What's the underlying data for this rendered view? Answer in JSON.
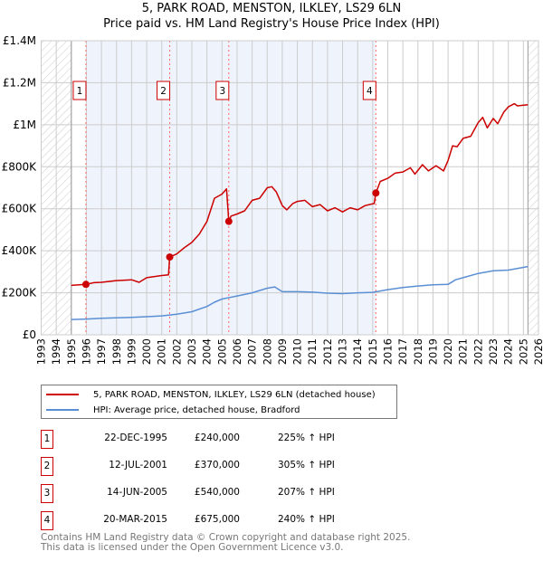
{
  "chart_data": {
    "type": "line",
    "title": "5, PARK ROAD, MENSTON, ILKLEY, LS29 6LN",
    "subtitle": "Price paid vs. HM Land Registry's House Price Index (HPI)",
    "xlim": [
      1993,
      2026
    ],
    "ylim": [
      0,
      1400000
    ],
    "x_ticks": [
      "1993",
      "1994",
      "1995",
      "1996",
      "1997",
      "1998",
      "1999",
      "2000",
      "2001",
      "2002",
      "2003",
      "2004",
      "2005",
      "2006",
      "2007",
      "2008",
      "2009",
      "2010",
      "2011",
      "2012",
      "2013",
      "2014",
      "2015",
      "2016",
      "2017",
      "2018",
      "2019",
      "2020",
      "2021",
      "2022",
      "2023",
      "2024",
      "2025",
      "2026"
    ],
    "y_ticks": [
      {
        "v": 0,
        "label": "£0"
      },
      {
        "v": 200000,
        "label": "£200K"
      },
      {
        "v": 400000,
        "label": "£400K"
      },
      {
        "v": 600000,
        "label": "£600K"
      },
      {
        "v": 800000,
        "label": "£800K"
      },
      {
        "v": 1000000,
        "label": "£1M"
      },
      {
        "v": 1200000,
        "label": "£1.2M"
      },
      {
        "v": 1400000,
        "label": "£1.4M"
      }
    ],
    "grid": true,
    "data_range": [
      1995,
      2025.3
    ],
    "colors": {
      "property": "#cc0000",
      "hpi": "#5b8fd4",
      "shade": "#eef3fc",
      "sale_line": "#ff6666"
    },
    "series": [
      {
        "name": "5, PARK ROAD, MENSTON, ILKLEY, LS29 6LN (detached house)",
        "color": "#cc0000",
        "x": [
          1995.0,
          1995.97,
          1996.5,
          1997,
          1998,
          1999,
          1999.5,
          2000,
          2001,
          2001.45,
          2001.53,
          2002,
          2002.5,
          2003,
          2003.5,
          2004,
          2004.5,
          2005,
          2005.3,
          2005.45,
          2005.6,
          2006,
          2006.5,
          2007,
          2007.5,
          2008,
          2008.3,
          2008.6,
          2009,
          2009.3,
          2009.7,
          2010,
          2010.5,
          2011,
          2011.5,
          2012,
          2012.5,
          2013,
          2013.5,
          2014,
          2014.5,
          2015.1,
          2015.21,
          2015.5,
          2016,
          2016.5,
          2017,
          2017.5,
          2017.8,
          2018.3,
          2018.7,
          2019.2,
          2019.7,
          2020,
          2020.3,
          2020.6,
          2021,
          2021.5,
          2022,
          2022.3,
          2022.6,
          2023,
          2023.3,
          2023.7,
          2024,
          2024.4,
          2024.6,
          2025.3
        ],
        "y": [
          235000,
          240000,
          248000,
          250000,
          258000,
          262000,
          250000,
          272000,
          282000,
          285000,
          370000,
          385000,
          415000,
          440000,
          480000,
          540000,
          650000,
          670000,
          695000,
          540000,
          565000,
          575000,
          590000,
          640000,
          650000,
          700000,
          705000,
          680000,
          615000,
          595000,
          625000,
          635000,
          640000,
          610000,
          620000,
          590000,
          605000,
          585000,
          605000,
          595000,
          615000,
          625000,
          675000,
          730000,
          745000,
          770000,
          775000,
          795000,
          765000,
          810000,
          780000,
          805000,
          780000,
          830000,
          900000,
          895000,
          935000,
          945000,
          1010000,
          1035000,
          985000,
          1030000,
          1005000,
          1060000,
          1085000,
          1100000,
          1090000,
          1095000
        ]
      },
      {
        "name": "HPI: Average price, detached house, Bradford",
        "color": "#5b8fd4",
        "x": [
          1995,
          1996,
          1997,
          1998,
          1999,
          2000,
          2001,
          2002,
          2003,
          2004,
          2004.5,
          2005,
          2006,
          2007,
          2008,
          2008.5,
          2009,
          2010,
          2011,
          2012,
          2013,
          2014,
          2015,
          2016,
          2017,
          2018,
          2019,
          2020,
          2020.5,
          2021,
          2022,
          2023,
          2024,
          2025.3
        ],
        "y": [
          73000,
          75000,
          79000,
          81000,
          83000,
          86000,
          90000,
          98000,
          110000,
          135000,
          155000,
          170000,
          185000,
          200000,
          222000,
          228000,
          205000,
          205000,
          203000,
          198000,
          196000,
          200000,
          202000,
          215000,
          225000,
          232000,
          238000,
          240000,
          262000,
          272000,
          292000,
          305000,
          308000,
          325000
        ]
      }
    ],
    "sales": [
      {
        "n": "1",
        "x": 1995.97,
        "price": 240000
      },
      {
        "n": "2",
        "x": 2001.53,
        "price": 370000
      },
      {
        "n": "3",
        "x": 2005.45,
        "price": 540000
      },
      {
        "n": "4",
        "x": 2015.21,
        "price": 675000
      }
    ]
  },
  "title": {
    "line1": "5, PARK ROAD, MENSTON, ILKLEY, LS29 6LN",
    "line2": "Price paid vs. HM Land Registry's House Price Index (HPI)"
  },
  "legend": [
    {
      "label": "5, PARK ROAD, MENSTON, ILKLEY, LS29 6LN (detached house)"
    },
    {
      "label": "HPI: Average price, detached house, Bradford"
    }
  ],
  "table": [
    {
      "n": "1",
      "date": "22-DEC-1995",
      "price": "£240,000",
      "hpi": "225% ↑ HPI"
    },
    {
      "n": "2",
      "date": "12-JUL-2001",
      "price": "£370,000",
      "hpi": "305% ↑ HPI"
    },
    {
      "n": "3",
      "date": "14-JUN-2005",
      "price": "£540,000",
      "hpi": "207% ↑ HPI"
    },
    {
      "n": "4",
      "date": "20-MAR-2015",
      "price": "£675,000",
      "hpi": "240% ↑ HPI"
    }
  ],
  "footer": {
    "line1": "Contains HM Land Registry data © Crown copyright and database right 2025.",
    "line2": "This data is licensed under the Open Government Licence v3.0."
  }
}
